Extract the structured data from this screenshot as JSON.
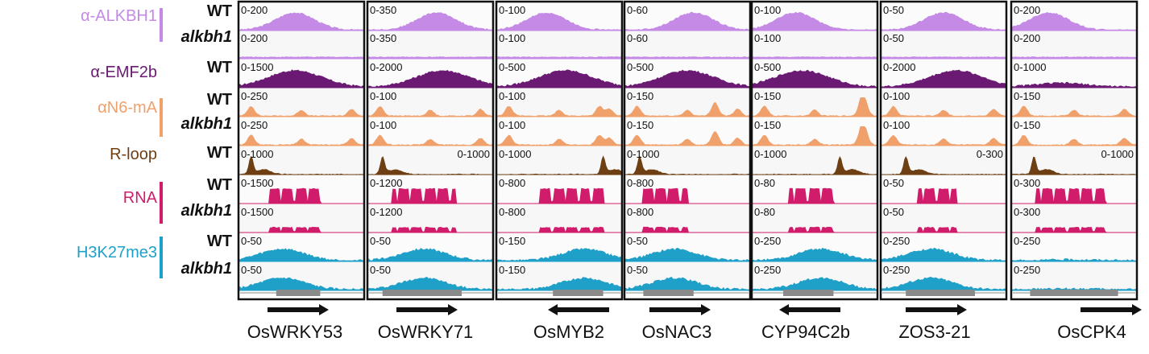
{
  "track_labels": [
    {
      "text": "α-ALKBH1",
      "color": "#c48ae6",
      "italic": false
    },
    {
      "text": "α-EMF2b",
      "color": "#6b1a73",
      "italic": false
    },
    {
      "text": "αN6-mA",
      "color": "#f0a06a",
      "italic": false
    },
    {
      "text": "R-loop",
      "color": "#6e3f13",
      "italic": false
    },
    {
      "text": "RNA",
      "color": "#d01c6a",
      "italic": false
    },
    {
      "text": "H3K27me3",
      "color": "#1fa0c8",
      "italic": false
    }
  ],
  "genotype_labels": {
    "wt": "WT",
    "mut": "alkbh1"
  },
  "genes": [
    {
      "name": "OsWRKY53",
      "direction": "right",
      "scales": [
        "0-200",
        "0-200",
        "0-1500",
        "0-250",
        "0-250",
        "0-1000",
        "0-1500",
        "0-1500",
        "0-50",
        "0-50"
      ]
    },
    {
      "name": "OsWRKY71",
      "direction": "right",
      "scales": [
        "0-350",
        "0-350",
        "0-2000",
        "0-100",
        "0-100",
        "0-1000",
        "0-1200",
        "0-1200",
        "0-50",
        "0-50"
      ]
    },
    {
      "name": "OsMYB2",
      "direction": "left",
      "scales": [
        "0-100",
        "0-100",
        "0-500",
        "0-100",
        "0-100",
        "0-1000",
        "0-800",
        "0-800",
        "0-150",
        "0-150"
      ]
    },
    {
      "name": "OsNAC3",
      "direction": "right",
      "scales": [
        "0-60",
        "0-60",
        "0-500",
        "0-150",
        "0-150",
        "0-1000",
        "0-800",
        "0-800",
        "0-50",
        "0-50"
      ]
    },
    {
      "name": "CYP94C2b",
      "direction": "left",
      "scales": [
        "0-100",
        "0-100",
        "0-500",
        "0-150",
        "0-150",
        "0-1000",
        "0-80",
        "0-80",
        "0-250",
        "0-250"
      ]
    },
    {
      "name": "ZOS3-21",
      "direction": "right",
      "scales": [
        "0-50",
        "0-50",
        "0-2000",
        "0-100",
        "0-100",
        "0-300",
        "0-50",
        "0-50",
        "0-250",
        "0-250"
      ]
    },
    {
      "name": "OsCPK4",
      "direction": "right",
      "scales": [
        "0-200",
        "0-200",
        "0-1000",
        "0-150",
        "0-150",
        "0-1000",
        "0-300",
        "0-300",
        "0-250",
        "0-250"
      ]
    }
  ]
}
